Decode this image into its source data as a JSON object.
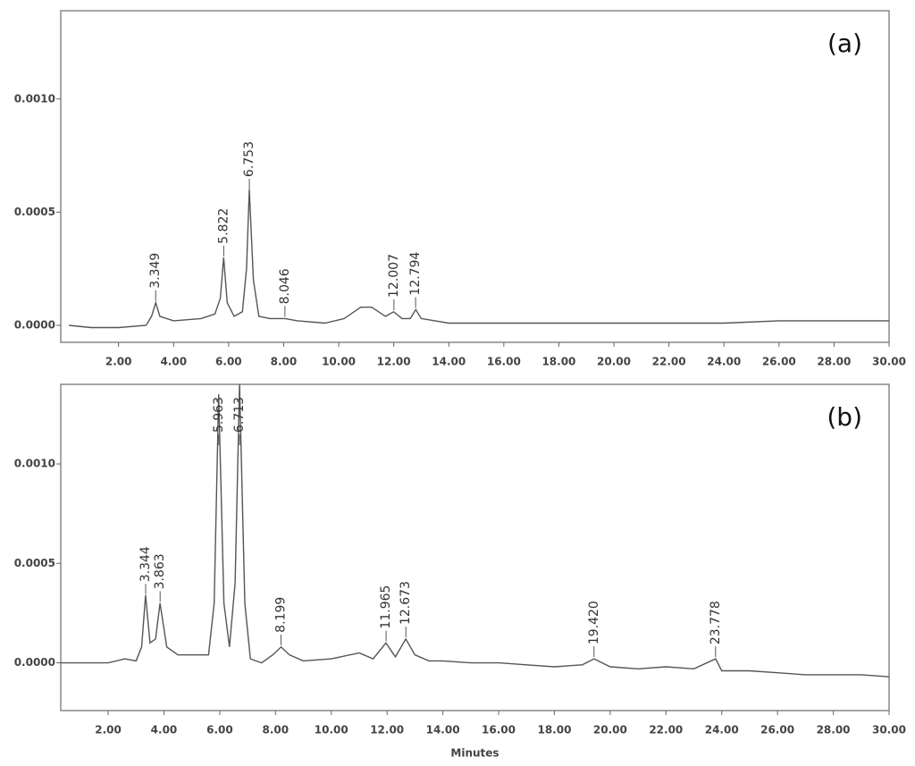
{
  "chart_data": [
    {
      "type": "line",
      "panel_label": "(a)",
      "color": "#555555",
      "xlim": [
        -0.1,
        30
      ],
      "ylim": [
        -7.5e-05,
        0.00139
      ],
      "xticks": [
        {
          "value": 2,
          "label": "2.00"
        },
        {
          "value": 4,
          "label": "4.00"
        },
        {
          "value": 6,
          "label": "6.00"
        },
        {
          "value": 8,
          "label": "8.00"
        },
        {
          "value": 10,
          "label": "10.00"
        },
        {
          "value": 12,
          "label": "12.00"
        },
        {
          "value": 14,
          "label": "14.00"
        },
        {
          "value": 16,
          "label": "16.00"
        },
        {
          "value": 18,
          "label": "18.00"
        },
        {
          "value": 20,
          "label": "20.00"
        },
        {
          "value": 22,
          "label": "22.00"
        },
        {
          "value": 24,
          "label": "24.00"
        },
        {
          "value": 26,
          "label": "26.00"
        },
        {
          "value": 28,
          "label": "28.00"
        },
        {
          "value": 30,
          "label": "30.00"
        }
      ],
      "yticks": [
        {
          "value": 0,
          "label": "0.0000"
        },
        {
          "value": 0.0005,
          "label": "0.0005"
        },
        {
          "value": 0.001,
          "label": "0.0010"
        }
      ],
      "x": [
        0.2,
        1,
        2,
        3,
        3.2,
        3.35,
        3.5,
        4,
        5,
        5.5,
        5.7,
        5.82,
        5.95,
        6.2,
        6.5,
        6.65,
        6.75,
        6.9,
        7.1,
        7.5,
        8.05,
        8.5,
        9.5,
        10.2,
        10.8,
        11.2,
        11.7,
        12.0,
        12.3,
        12.6,
        12.8,
        13.0,
        13.5,
        14,
        16,
        18,
        20,
        22,
        24,
        26,
        28,
        30
      ],
      "values": [
        0.0,
        -1e-05,
        -1e-05,
        0.0,
        4e-05,
        0.0001,
        4e-05,
        2e-05,
        3e-05,
        5e-05,
        0.00012,
        0.0003,
        0.0001,
        4e-05,
        6e-05,
        0.00025,
        0.0006,
        0.0002,
        4e-05,
        3e-05,
        3e-05,
        2e-05,
        1e-05,
        3e-05,
        8e-05,
        8e-05,
        4e-05,
        6e-05,
        3e-05,
        3e-05,
        7e-05,
        3e-05,
        2e-05,
        1e-05,
        1e-05,
        1e-05,
        1e-05,
        1e-05,
        1e-05,
        2e-05,
        2e-05,
        2e-05
      ],
      "peak_times": [
        3.349,
        5.822,
        6.753,
        8.046,
        12.007,
        12.794
      ],
      "peak_labels": [
        "3.349",
        "5.822",
        "6.753",
        "8.046",
        "12.007",
        "12.794"
      ]
    },
    {
      "type": "line",
      "panel_label": "(b)",
      "color": "#555555",
      "xlabel": "Minutes",
      "xlim": [
        0.3,
        30
      ],
      "ylim": [
        -0.00024,
        0.0014
      ],
      "xticks": [
        {
          "value": 2,
          "label": "2.00"
        },
        {
          "value": 4,
          "label": "4.00"
        },
        {
          "value": 6,
          "label": "6.00"
        },
        {
          "value": 8,
          "label": "8.00"
        },
        {
          "value": 10,
          "label": "10.00"
        },
        {
          "value": 12,
          "label": "12.00"
        },
        {
          "value": 14,
          "label": "14.00"
        },
        {
          "value": 16,
          "label": "16.00"
        },
        {
          "value": 18,
          "label": "18.00"
        },
        {
          "value": 20,
          "label": "20.00"
        },
        {
          "value": 22,
          "label": "22.00"
        },
        {
          "value": 24,
          "label": "24.00"
        },
        {
          "value": 26,
          "label": "26.00"
        },
        {
          "value": 28,
          "label": "28.00"
        },
        {
          "value": 30,
          "label": "30.00"
        }
      ],
      "yticks": [
        {
          "value": 0,
          "label": "0.0000"
        },
        {
          "value": 0.0005,
          "label": "0.0005"
        },
        {
          "value": 0.001,
          "label": "0.0010"
        }
      ],
      "x": [
        0.3,
        1,
        2,
        2.6,
        3.0,
        3.2,
        3.34,
        3.5,
        3.7,
        3.86,
        4.1,
        4.5,
        5.0,
        5.6,
        5.8,
        5.96,
        6.15,
        6.35,
        6.55,
        6.71,
        6.9,
        7.1,
        7.5,
        7.9,
        8.2,
        8.5,
        9,
        10,
        11,
        11.5,
        11.96,
        12.3,
        12.67,
        13,
        13.5,
        14,
        15,
        16,
        17,
        18,
        19,
        19.42,
        20,
        21,
        22,
        23,
        23.78,
        24,
        25,
        26,
        27,
        28,
        29,
        30
      ],
      "values": [
        0.0,
        0.0,
        0.0,
        2e-05,
        1e-05,
        8e-05,
        0.00034,
        0.0001,
        0.00012,
        0.0003,
        8e-05,
        4e-05,
        4e-05,
        4e-05,
        0.0003,
        0.00135,
        0.0003,
        8e-05,
        0.0004,
        0.0014,
        0.0003,
        2e-05,
        0.0,
        4e-05,
        8e-05,
        4e-05,
        1e-05,
        2e-05,
        5e-05,
        2e-05,
        0.0001,
        3e-05,
        0.00012,
        4e-05,
        1e-05,
        1e-05,
        0.0,
        0.0,
        -1e-05,
        -2e-05,
        -1e-05,
        2e-05,
        -2e-05,
        -3e-05,
        -2e-05,
        -3e-05,
        2e-05,
        -4e-05,
        -4e-05,
        -5e-05,
        -6e-05,
        -6e-05,
        -6e-05,
        -7e-05
      ],
      "peak_times": [
        3.344,
        3.863,
        5.963,
        6.713,
        8.199,
        11.965,
        12.673,
        19.42,
        23.778
      ],
      "peak_labels": [
        "3.344",
        "3.863",
        "5.963",
        "6.713",
        "8.199",
        "11.965",
        "12.673",
        "19.420",
        "23.778"
      ]
    }
  ]
}
